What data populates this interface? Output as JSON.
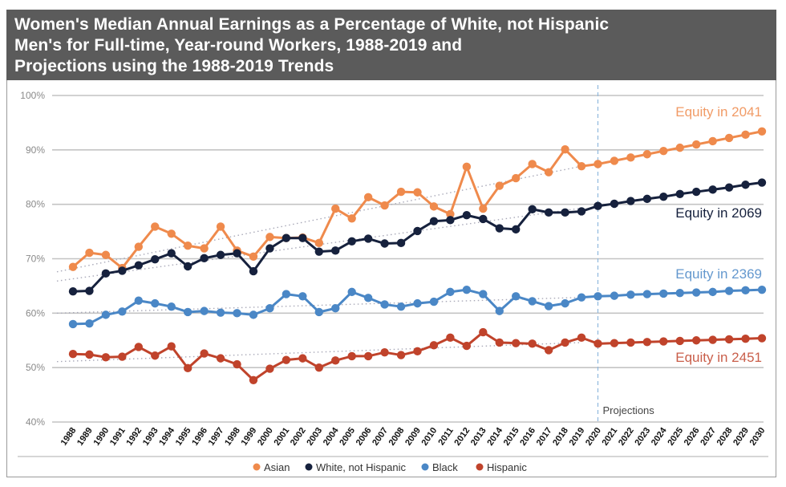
{
  "chart_data": {
    "type": "line",
    "title_lines": [
      "Women's Median Annual Earnings as a Percentage of White, not Hispanic",
      "Men's for Full-time, Year-round Workers, 1988-2019 and",
      "Projections using the 1988-2019 Trends"
    ],
    "xlabel": "",
    "ylabel": "",
    "ylim": [
      40,
      100
    ],
    "yticks": [
      40,
      50,
      60,
      70,
      80,
      90,
      100
    ],
    "ytick_labels": [
      "40%",
      "50%",
      "60%",
      "70%",
      "80%",
      "90%",
      "100%"
    ],
    "x": [
      1988,
      1989,
      1990,
      1991,
      1992,
      1993,
      1994,
      1995,
      1996,
      1997,
      1998,
      1999,
      2000,
      2001,
      2002,
      2003,
      2004,
      2005,
      2006,
      2007,
      2008,
      2009,
      2010,
      2011,
      2012,
      2013,
      2014,
      2015,
      2016,
      2017,
      2018,
      2019,
      2020,
      2021,
      2022,
      2023,
      2024,
      2025,
      2026,
      2027,
      2028,
      2029,
      2030
    ],
    "xtick_labels": [
      "1988",
      "1989",
      "1990",
      "1991",
      "1992",
      "1993",
      "1994",
      "1995",
      "1996",
      "1997",
      "1998",
      "1999",
      "2000",
      "2001",
      "2002",
      "2003",
      "2004",
      "2005",
      "2006",
      "2007",
      "2008",
      "2009",
      "2010",
      "2011",
      "2012",
      "2013",
      "2014",
      "2015",
      "2016",
      "2017",
      "2018",
      "2019",
      "2020",
      "2021",
      "2022",
      "2023",
      "2024",
      "2025",
      "2026",
      "2027",
      "2028",
      "2029",
      "2030"
    ],
    "grid": true,
    "projection_start": 2020,
    "projection_label": "Projections",
    "legend_position": "bottom",
    "series": [
      {
        "name": "Asian",
        "color": "#ef8a4c",
        "values": [
          68.5,
          71.1,
          70.7,
          68.3,
          72.2,
          75.9,
          74.6,
          72.4,
          71.9,
          75.9,
          71.5,
          70.4,
          74.0,
          73.8,
          73.9,
          72.9,
          79.2,
          77.4,
          81.3,
          79.8,
          82.3,
          82.2,
          79.6,
          78.2,
          86.9,
          79.2,
          83.4,
          84.8,
          87.4,
          85.9,
          90.1,
          87.0,
          87.4,
          88.0,
          88.6,
          89.2,
          89.8,
          90.4,
          91.0,
          91.6,
          92.2,
          92.8,
          93.4
        ],
        "trend": [
          67.6,
          87.0
        ],
        "equity_label": "Equity in 2041"
      },
      {
        "name": "White, not Hispanic",
        "color": "#16213d",
        "values": [
          64.0,
          64.1,
          67.3,
          67.8,
          68.8,
          69.9,
          71.0,
          68.6,
          70.1,
          70.7,
          71.0,
          67.7,
          71.9,
          73.8,
          73.8,
          71.3,
          71.5,
          73.2,
          73.7,
          72.8,
          72.9,
          75.1,
          76.9,
          77.1,
          78.0,
          77.3,
          75.6,
          75.4,
          79.1,
          78.5,
          78.5,
          78.7,
          79.7,
          80.1,
          80.6,
          81.0,
          81.4,
          81.9,
          82.3,
          82.7,
          83.1,
          83.6,
          84.0
        ],
        "trend": [
          65.9,
          79.3
        ],
        "equity_label": "Equity in 2069"
      },
      {
        "name": "Black",
        "color": "#4a87c6",
        "values": [
          58.0,
          58.1,
          59.7,
          60.3,
          62.3,
          61.8,
          61.2,
          60.2,
          60.4,
          60.1,
          60.0,
          59.7,
          60.9,
          63.5,
          63.1,
          60.2,
          60.9,
          63.9,
          62.8,
          61.6,
          61.2,
          61.8,
          62.1,
          63.9,
          64.3,
          63.5,
          60.4,
          63.1,
          62.2,
          61.3,
          61.8,
          62.9,
          63.1,
          63.2,
          63.4,
          63.5,
          63.6,
          63.7,
          63.8,
          63.9,
          64.1,
          64.2,
          64.3
        ],
        "trend": [
          60.0,
          62.9
        ],
        "equity_label": "Equity in 2369"
      },
      {
        "name": "Hispanic",
        "color": "#c0432b",
        "values": [
          52.5,
          52.4,
          51.9,
          52.0,
          53.8,
          52.2,
          53.9,
          49.9,
          52.6,
          51.7,
          50.6,
          47.7,
          49.8,
          51.4,
          51.7,
          50.0,
          51.3,
          52.1,
          52.1,
          52.8,
          52.3,
          53.0,
          54.1,
          55.5,
          54.0,
          56.5,
          54.6,
          54.5,
          54.4,
          53.2,
          54.6,
          55.5,
          54.4,
          54.5,
          54.6,
          54.7,
          54.8,
          54.9,
          55.0,
          55.1,
          55.2,
          55.3,
          55.4
        ],
        "trend": [
          51.1,
          54.6
        ],
        "equity_label": "Equity in 2451"
      }
    ]
  }
}
